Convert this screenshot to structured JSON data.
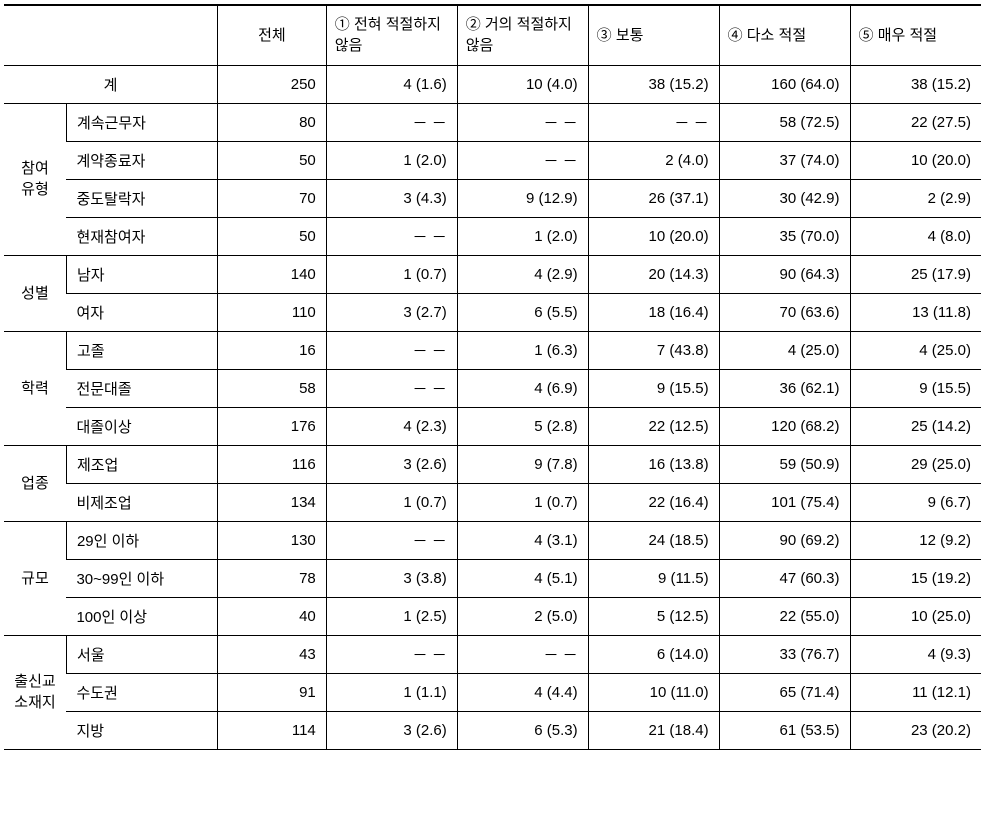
{
  "headers": {
    "blank": "",
    "total": "전체",
    "col1": "① 전혀 적절하지 않음",
    "col2": "② 거의 적절하지 않음",
    "col3": "③ 보통",
    "col4": "④ 다소 적절",
    "col5": "⑤ 매우 적절"
  },
  "total_row": {
    "label": "계",
    "total": "250",
    "c1": "4 (1.6)",
    "c2": "10 (4.0)",
    "c3": "38 (15.2)",
    "c4": "160 (64.0)",
    "c5": "38 (15.2)"
  },
  "groups": [
    {
      "name": "참여유형",
      "rows": [
        {
          "label": "계속근무자",
          "total": "80",
          "c1": "－ －",
          "c2": "－ －",
          "c3": "－ －",
          "c4": "58 (72.5)",
          "c5": "22 (27.5)"
        },
        {
          "label": "계약종료자",
          "total": "50",
          "c1": "1 (2.0)",
          "c2": "－ －",
          "c3": "2 (4.0)",
          "c4": "37 (74.0)",
          "c5": "10 (20.0)"
        },
        {
          "label": "중도탈락자",
          "total": "70",
          "c1": "3 (4.3)",
          "c2": "9 (12.9)",
          "c3": "26 (37.1)",
          "c4": "30 (42.9)",
          "c5": "2 (2.9)"
        },
        {
          "label": "현재참여자",
          "total": "50",
          "c1": "－ －",
          "c2": "1 (2.0)",
          "c3": "10 (20.0)",
          "c4": "35 (70.0)",
          "c5": "4 (8.0)"
        }
      ]
    },
    {
      "name": "성별",
      "rows": [
        {
          "label": "남자",
          "total": "140",
          "c1": "1 (0.7)",
          "c2": "4 (2.9)",
          "c3": "20 (14.3)",
          "c4": "90 (64.3)",
          "c5": "25 (17.9)"
        },
        {
          "label": "여자",
          "total": "110",
          "c1": "3 (2.7)",
          "c2": "6 (5.5)",
          "c3": "18 (16.4)",
          "c4": "70 (63.6)",
          "c5": "13 (11.8)"
        }
      ]
    },
    {
      "name": "학력",
      "rows": [
        {
          "label": "고졸",
          "total": "16",
          "c1": "－ －",
          "c2": "1 (6.3)",
          "c3": "7 (43.8)",
          "c4": "4 (25.0)",
          "c5": "4 (25.0)"
        },
        {
          "label": "전문대졸",
          "total": "58",
          "c1": "－ －",
          "c2": "4 (6.9)",
          "c3": "9 (15.5)",
          "c4": "36 (62.1)",
          "c5": "9 (15.5)"
        },
        {
          "label": "대졸이상",
          "total": "176",
          "c1": "4 (2.3)",
          "c2": "5 (2.8)",
          "c3": "22 (12.5)",
          "c4": "120 (68.2)",
          "c5": "25 (14.2)"
        }
      ]
    },
    {
      "name": "업종",
      "rows": [
        {
          "label": "제조업",
          "total": "116",
          "c1": "3 (2.6)",
          "c2": "9 (7.8)",
          "c3": "16 (13.8)",
          "c4": "59 (50.9)",
          "c5": "29 (25.0)"
        },
        {
          "label": "비제조업",
          "total": "134",
          "c1": "1 (0.7)",
          "c2": "1 (0.7)",
          "c3": "22 (16.4)",
          "c4": "101 (75.4)",
          "c5": "9 (6.7)"
        }
      ]
    },
    {
      "name": "규모",
      "rows": [
        {
          "label": "29인 이하",
          "total": "130",
          "c1": "－ －",
          "c2": "4 (3.1)",
          "c3": "24 (18.5)",
          "c4": "90 (69.2)",
          "c5": "12 (9.2)"
        },
        {
          "label": "30~99인 이하",
          "total": "78",
          "c1": "3 (3.8)",
          "c2": "4 (5.1)",
          "c3": "9 (11.5)",
          "c4": "47 (60.3)",
          "c5": "15 (19.2)"
        },
        {
          "label": "100인 이상",
          "total": "40",
          "c1": "1 (2.5)",
          "c2": "2 (5.0)",
          "c3": "5 (12.5)",
          "c4": "22 (55.0)",
          "c5": "10 (25.0)"
        }
      ]
    },
    {
      "name": "출신교소재지",
      "rows": [
        {
          "label": "서울",
          "total": "43",
          "c1": "－ －",
          "c2": "－ －",
          "c3": "6 (14.0)",
          "c4": "33 (76.7)",
          "c5": "4 (9.3)"
        },
        {
          "label": "수도권",
          "total": "91",
          "c1": "1 (1.1)",
          "c2": "4 (4.4)",
          "c3": "10 (11.0)",
          "c4": "65 (71.4)",
          "c5": "11 (12.1)"
        },
        {
          "label": "지방",
          "total": "114",
          "c1": "3 (2.6)",
          "c2": "6 (5.3)",
          "c3": "21 (18.4)",
          "c4": "61 (53.5)",
          "c5": "23 (20.2)"
        }
      ]
    }
  ]
}
